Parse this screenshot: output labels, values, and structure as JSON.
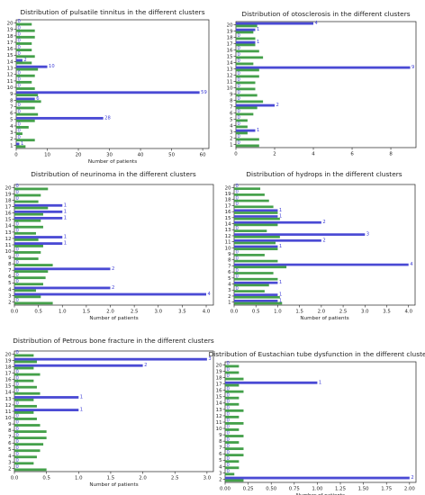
{
  "chart_data": [
    {
      "type": "bar",
      "orientation": "horizontal",
      "title": "Distribution of pulsatile tinnitus in the different clusters",
      "xlabel": "Number of patients",
      "categories": [
        "1",
        "2",
        "3",
        "4",
        "5",
        "6",
        "7",
        "8",
        "9",
        "10",
        "11",
        "12",
        "13",
        "14",
        "15",
        "16",
        "17",
        "18",
        "19",
        "20"
      ],
      "xticks": [
        "0",
        "10",
        "20",
        "30",
        "40",
        "50",
        "60"
      ],
      "xlim": [
        0,
        62
      ],
      "series": [
        {
          "color": "#4a4ad4",
          "values": [
            1,
            0,
            0,
            0,
            28,
            0,
            0,
            6,
            59,
            0,
            0,
            0,
            10,
            2,
            0,
            0,
            0,
            0,
            0,
            0
          ],
          "labels": [
            "1",
            "0",
            "0",
            "0",
            "28",
            "0",
            "0",
            "6",
            "59",
            "0",
            "0",
            "0",
            "10",
            "2",
            "0",
            "0",
            "0",
            "0",
            "0",
            "0"
          ]
        },
        {
          "color": "#44a04a",
          "values": [
            3,
            6,
            2,
            4,
            6,
            7,
            6,
            8,
            7,
            6,
            5,
            6,
            7,
            5,
            6,
            5,
            5,
            6,
            6,
            5
          ]
        }
      ]
    },
    {
      "type": "bar",
      "orientation": "horizontal",
      "title": "Distribution of otosclerosis in the different clusters",
      "xlabel": "",
      "categories": [
        "1",
        "2",
        "3",
        "4",
        "5",
        "6",
        "7",
        "8",
        "9",
        "10",
        "11",
        "12",
        "13",
        "14",
        "15",
        "16",
        "17",
        "18",
        "19",
        "20"
      ],
      "xticks": [
        "0",
        "2",
        "4",
        "6",
        "8"
      ],
      "xlim": [
        0,
        9.3
      ],
      "series": [
        {
          "color": "#4a4ad4",
          "values": [
            0,
            0,
            1,
            0,
            0,
            0,
            2,
            0,
            0,
            0,
            0,
            0,
            9,
            0,
            0,
            0,
            1,
            0,
            1,
            4
          ],
          "labels": [
            "0",
            "0",
            "1",
            "0",
            "0",
            "0",
            "2",
            "0",
            "0",
            "0",
            "0",
            "0",
            "9",
            "0",
            "0",
            "0",
            "1",
            "0",
            "1",
            "4"
          ]
        },
        {
          "color": "#44a04a",
          "values": [
            1.2,
            1.2,
            0.6,
            0.6,
            0.6,
            0.9,
            1.1,
            1.4,
            1.1,
            1.0,
            1.0,
            1.2,
            1.2,
            0.9,
            1.4,
            1.2,
            1.0,
            1.0,
            0.9,
            1.1
          ]
        }
      ]
    },
    {
      "type": "bar",
      "orientation": "horizontal",
      "title": "Distribution of neurinoma in the different clusters",
      "xlabel": "Number of patients",
      "categories": [
        "2",
        "3",
        "4",
        "5",
        "6",
        "7",
        "8",
        "9",
        "10",
        "11",
        "12",
        "13",
        "14",
        "15",
        "16",
        "17",
        "18",
        "19",
        "20"
      ],
      "xticks": [
        "0.0",
        "0.5",
        "1.0",
        "1.5",
        "2.0",
        "2.5",
        "3.0",
        "3.5",
        "4.0"
      ],
      "xlim": [
        0,
        4.15
      ],
      "series": [
        {
          "color": "#4a4ad4",
          "values": [
            0,
            4,
            2,
            0,
            0,
            2,
            0,
            0,
            0,
            1,
            1,
            0,
            0,
            1,
            1,
            1,
            0,
            0,
            0
          ],
          "labels": [
            "0",
            "4",
            "2",
            "0",
            "0",
            "2",
            "0",
            "0",
            "0",
            "1",
            "1",
            "0",
            "0",
            "1",
            "1",
            "1",
            "0",
            "0",
            "0"
          ]
        },
        {
          "color": "#44a04a",
          "values": [
            0.8,
            0.55,
            0.45,
            0.6,
            0.65,
            0.7,
            0.8,
            0.5,
            0.55,
            0.6,
            0.5,
            0.45,
            0.6,
            0.55,
            0.6,
            0.7,
            0.5,
            0.55,
            0.7
          ]
        }
      ]
    },
    {
      "type": "bar",
      "orientation": "horizontal",
      "title": "Distribution of hydrops in the different clusters",
      "xlabel": "Number of patients",
      "categories": [
        "1",
        "2",
        "3",
        "4",
        "5",
        "6",
        "7",
        "8",
        "9",
        "10",
        "11",
        "12",
        "13",
        "14",
        "15",
        "16",
        "17",
        "18",
        "19",
        "20"
      ],
      "xticks": [
        "0.0",
        "0.5",
        "1.0",
        "1.5",
        "2.0",
        "2.5",
        "3.0",
        "3.5",
        "4.0"
      ],
      "xlim": [
        0,
        4.15
      ],
      "series": [
        {
          "color": "#4a4ad4",
          "values": [
            1,
            1,
            0,
            1,
            0,
            0,
            4,
            0,
            0,
            1,
            2,
            3,
            0,
            2,
            1,
            1,
            0,
            0,
            0,
            0
          ],
          "labels": [
            "1",
            "1",
            "0",
            "1",
            "0",
            "0",
            "4",
            "0",
            "0",
            "1",
            "2",
            "3",
            "0",
            "2",
            "1",
            "1",
            "0",
            "0",
            "0",
            "0"
          ]
        },
        {
          "color": "#44a04a",
          "values": [
            1.1,
            1.05,
            0.7,
            0.8,
            1.0,
            0.9,
            1.2,
            1.0,
            0.7,
            1.0,
            0.95,
            1.05,
            0.75,
            1.0,
            1.05,
            1.0,
            0.9,
            0.8,
            0.7,
            0.6
          ]
        }
      ]
    },
    {
      "type": "bar",
      "orientation": "horizontal",
      "title": "Distribution of Petrous bone fracture in the different clusters",
      "xlabel": "Number of patients",
      "categories": [
        "2",
        "3",
        "4",
        "5",
        "6",
        "7",
        "8",
        "9",
        "10",
        "11",
        "12",
        "13",
        "14",
        "15",
        "16",
        "17",
        "18",
        "19",
        "20"
      ],
      "xticks": [
        "0.0",
        "0.5",
        "1.0",
        "1.5",
        "2.0",
        "2.5",
        "3.0"
      ],
      "xlim": [
        0,
        3.1
      ],
      "series": [
        {
          "color": "#4a4ad4",
          "values": [
            0,
            0,
            0,
            0,
            0,
            0,
            0,
            0,
            0,
            1,
            0,
            1,
            0,
            0,
            0,
            0,
            2,
            3,
            0
          ],
          "labels": [
            "0",
            "0",
            "0",
            "0",
            "0",
            "0",
            "0",
            "0",
            "0",
            "1",
            "0",
            "1",
            "0",
            "0",
            "0",
            "0",
            "2",
            "3",
            "0"
          ]
        },
        {
          "color": "#44a04a",
          "values": [
            0.5,
            0.3,
            0.35,
            0.4,
            0.45,
            0.5,
            0.5,
            0.4,
            0.35,
            0.3,
            0.35,
            0.3,
            0.4,
            0.35,
            0.3,
            0.4,
            0.3,
            0.35,
            0.3
          ]
        }
      ]
    },
    {
      "type": "bar",
      "orientation": "horizontal",
      "title": "Distribution of Eustachian tube dysfunction in the different clusters",
      "xlabel": "Number of patients",
      "categories": [
        "2",
        "3",
        "4",
        "5",
        "6",
        "7",
        "8",
        "9",
        "10",
        "11",
        "12",
        "13",
        "14",
        "15",
        "16",
        "17",
        "18",
        "19",
        "20"
      ],
      "xticks": [
        "0.00",
        "0.25",
        "0.50",
        "0.75",
        "1.00",
        "1.25",
        "1.50",
        "1.75",
        "2.00"
      ],
      "xlim": [
        0,
        2.07
      ],
      "series": [
        {
          "color": "#4a4ad4",
          "values": [
            2,
            0,
            0,
            0,
            0,
            0,
            0,
            0,
            0,
            0,
            0,
            0,
            0,
            0,
            0,
            1,
            0,
            0,
            0
          ],
          "labels": [
            "2",
            "0",
            "0",
            "0",
            "0",
            "0",
            "0",
            "0",
            "0",
            "0",
            "0",
            "0",
            "0",
            "0",
            "0",
            "1",
            "0",
            "0",
            "0"
          ]
        },
        {
          "color": "#44a04a",
          "values": [
            0.2,
            0.1,
            0.15,
            0.15,
            0.2,
            0.2,
            0.15,
            0.2,
            0.15,
            0.2,
            0.15,
            0.2,
            0.15,
            0.15,
            0.2,
            0.15,
            0.2,
            0.15,
            0.15
          ]
        }
      ]
    }
  ]
}
